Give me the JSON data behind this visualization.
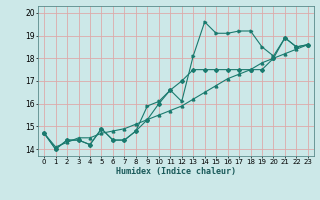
{
  "xlabel": "Humidex (Indice chaleur)",
  "bg_color": "#cce8e8",
  "grid_color": "#ddaaaa",
  "line_color": "#1a7a6e",
  "xlim": [
    -0.5,
    23.5
  ],
  "ylim": [
    13.7,
    20.3
  ],
  "xticks": [
    0,
    1,
    2,
    3,
    4,
    5,
    6,
    7,
    8,
    9,
    10,
    11,
    12,
    13,
    14,
    15,
    16,
    17,
    18,
    19,
    20,
    21,
    22,
    23
  ],
  "yticks": [
    14,
    15,
    16,
    17,
    18,
    19,
    20
  ],
  "series1_x": [
    0,
    1,
    2,
    3,
    4,
    5,
    6,
    7,
    8,
    9,
    10,
    11,
    12,
    13,
    14,
    15,
    16,
    17,
    18,
    19,
    20,
    21,
    22,
    23
  ],
  "series1_y": [
    14.7,
    14.0,
    14.4,
    14.4,
    14.2,
    14.9,
    14.4,
    14.4,
    14.8,
    15.9,
    16.1,
    16.6,
    16.1,
    18.1,
    19.6,
    19.1,
    19.1,
    19.2,
    19.2,
    18.5,
    18.1,
    18.9,
    18.5,
    18.6
  ],
  "series2_x": [
    0,
    1,
    2,
    3,
    4,
    5,
    6,
    7,
    8,
    9,
    10,
    11,
    12,
    13,
    14,
    15,
    16,
    17,
    18,
    19,
    20,
    21,
    22,
    23
  ],
  "series2_y": [
    14.7,
    14.0,
    14.4,
    14.4,
    14.2,
    14.9,
    14.4,
    14.4,
    14.8,
    15.3,
    16.0,
    16.6,
    17.0,
    17.5,
    17.5,
    17.5,
    17.5,
    17.5,
    17.5,
    17.5,
    18.0,
    18.9,
    18.5,
    18.6
  ],
  "series3_x": [
    0,
    1,
    2,
    3,
    4,
    5,
    6,
    7,
    8,
    9,
    10,
    11,
    12,
    13,
    14,
    15,
    16,
    17,
    18,
    19,
    20,
    21,
    22,
    23
  ],
  "series3_y": [
    14.7,
    14.1,
    14.3,
    14.5,
    14.5,
    14.7,
    14.8,
    14.9,
    15.1,
    15.3,
    15.5,
    15.7,
    15.9,
    16.2,
    16.5,
    16.8,
    17.1,
    17.3,
    17.5,
    17.8,
    18.0,
    18.2,
    18.4,
    18.6
  ]
}
